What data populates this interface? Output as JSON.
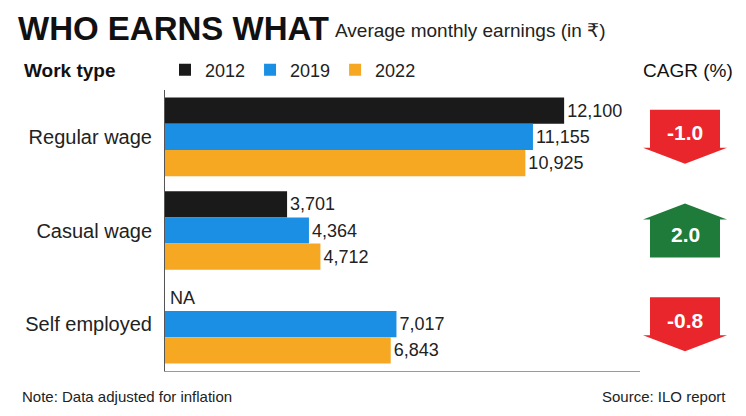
{
  "chart_data": {
    "type": "bar",
    "title": "WHO EARNS WHAT",
    "subtitle": "Average monthly earnings (in ₹)",
    "ylabel": "Work type",
    "orientation": "horizontal",
    "data_labels": true,
    "grid": false,
    "tick_labels": "y",
    "legend": "top-left",
    "categories": [
      "Regular wage",
      "Casual wage",
      "Self employed"
    ],
    "series": [
      {
        "name": "2012",
        "color": "#1a1a1a",
        "values": [
          12100,
          3701,
          null
        ],
        "value_labels": [
          "12,100",
          "3,701",
          "NA"
        ]
      },
      {
        "name": "2019",
        "color": "#1a8fe3",
        "values": [
          11155,
          4364,
          7017
        ],
        "value_labels": [
          "11,155",
          "4,364",
          "7,017"
        ]
      },
      {
        "name": "2022",
        "color": "#f7a823",
        "values": [
          10925,
          4712,
          6843
        ],
        "value_labels": [
          "10,925",
          "4,712",
          "6,843"
        ]
      }
    ],
    "xlim": [
      0,
      14400
    ],
    "cagr": {
      "title": "CAGR (%)",
      "values": [
        -1.0,
        2.0,
        -0.8
      ],
      "value_labels": [
        "-1.0",
        "2.0",
        "-0.8"
      ]
    },
    "note": "Note: Data adjusted for inflation",
    "source": "Source: ILO report"
  }
}
